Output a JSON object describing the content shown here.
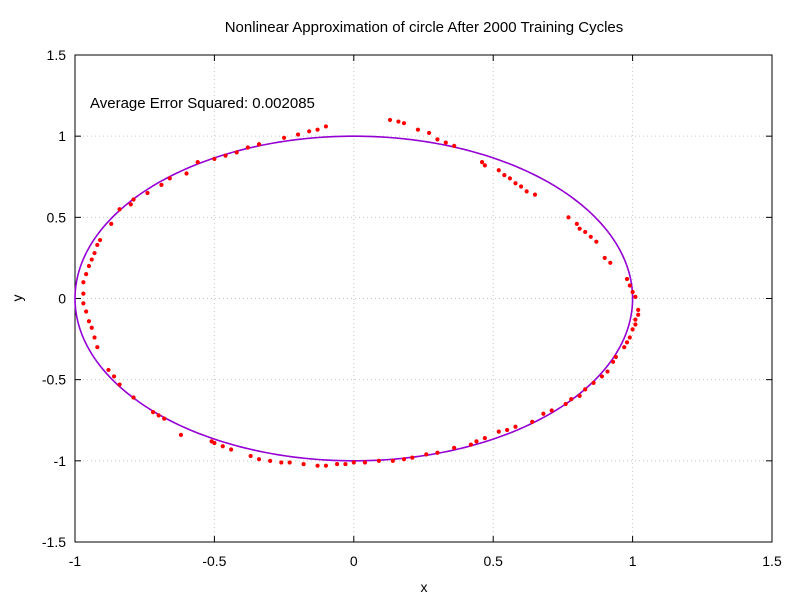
{
  "chart_data": {
    "type": "scatter",
    "title": "Nonlinear Approximation of circle After 2000 Training Cycles",
    "annotation": "Average Error Squared: 0.002085",
    "xlabel": "x",
    "ylabel": "y",
    "xlim": [
      -1,
      1.5
    ],
    "ylim": [
      -1.5,
      1.5
    ],
    "x_ticks": [
      -1,
      -0.5,
      0,
      0.5,
      1,
      1.5
    ],
    "y_ticks": [
      -1.5,
      -1,
      -0.5,
      0,
      0.5,
      1,
      1.5
    ],
    "x_tick_labels": [
      "-1",
      "-0.5",
      "0",
      "0.5",
      "1",
      "1.5"
    ],
    "y_tick_labels": [
      "-1.5",
      "-1",
      "-0.5",
      "0",
      "0.5",
      "1",
      "1.5"
    ],
    "grid": true,
    "legend": "none",
    "colors": {
      "circle": "#9400d3",
      "points": "#ff0000",
      "grid": "#c8c8c8"
    },
    "series": [
      {
        "type": "line",
        "shape": "unit circle",
        "center": [
          0,
          0
        ],
        "radius": 1
      },
      {
        "type": "scatter",
        "points": [
          [
            0.13,
            1.1
          ],
          [
            0.16,
            1.09
          ],
          [
            0.18,
            1.08
          ],
          [
            0.23,
            1.04
          ],
          [
            0.27,
            1.02
          ],
          [
            0.3,
            0.98
          ],
          [
            0.33,
            0.96
          ],
          [
            0.36,
            0.94
          ],
          [
            0.46,
            0.84
          ],
          [
            0.47,
            0.82
          ],
          [
            0.52,
            0.79
          ],
          [
            0.54,
            0.76
          ],
          [
            0.56,
            0.74
          ],
          [
            0.58,
            0.71
          ],
          [
            0.6,
            0.69
          ],
          [
            0.62,
            0.66
          ],
          [
            0.65,
            0.64
          ],
          [
            0.77,
            0.5
          ],
          [
            0.8,
            0.46
          ],
          [
            0.81,
            0.43
          ],
          [
            0.83,
            0.41
          ],
          [
            0.85,
            0.38
          ],
          [
            0.87,
            0.35
          ],
          [
            0.9,
            0.25
          ],
          [
            0.92,
            0.22
          ],
          [
            0.98,
            0.12
          ],
          [
            0.99,
            0.08
          ],
          [
            1.0,
            0.04
          ],
          [
            1.01,
            0.01
          ],
          [
            1.02,
            -0.07
          ],
          [
            1.02,
            -0.1
          ],
          [
            1.01,
            -0.13
          ],
          [
            1.01,
            -0.16
          ],
          [
            1.0,
            -0.19
          ],
          [
            0.99,
            -0.24
          ],
          [
            0.98,
            -0.27
          ],
          [
            0.97,
            -0.3
          ],
          [
            0.94,
            -0.36
          ],
          [
            0.93,
            -0.39
          ],
          [
            0.91,
            -0.45
          ],
          [
            0.89,
            -0.48
          ],
          [
            0.86,
            -0.52
          ],
          [
            0.83,
            -0.56
          ],
          [
            0.81,
            -0.6
          ],
          [
            0.78,
            -0.62
          ],
          [
            0.76,
            -0.65
          ],
          [
            0.71,
            -0.69
          ],
          [
            0.68,
            -0.71
          ],
          [
            0.64,
            -0.76
          ],
          [
            0.58,
            -0.79
          ],
          [
            0.55,
            -0.81
          ],
          [
            0.52,
            -0.82
          ],
          [
            0.47,
            -0.86
          ],
          [
            0.44,
            -0.88
          ],
          [
            0.42,
            -0.9
          ],
          [
            0.36,
            -0.92
          ],
          [
            0.3,
            -0.95
          ],
          [
            0.26,
            -0.96
          ],
          [
            0.21,
            -0.98
          ],
          [
            0.18,
            -0.99
          ],
          [
            0.14,
            -1.0
          ],
          [
            0.09,
            -1.0
          ],
          [
            0.04,
            -1.01
          ],
          [
            0.0,
            -1.01
          ],
          [
            -0.03,
            -1.02
          ],
          [
            -0.06,
            -1.02
          ],
          [
            -0.1,
            -1.03
          ],
          [
            -0.13,
            -1.03
          ],
          [
            -0.18,
            -1.02
          ],
          [
            -0.23,
            -1.01
          ],
          [
            -0.26,
            -1.01
          ],
          [
            -0.3,
            -1.0
          ],
          [
            -0.34,
            -0.99
          ],
          [
            -0.37,
            -0.97
          ],
          [
            -0.44,
            -0.93
          ],
          [
            -0.47,
            -0.91
          ],
          [
            -0.5,
            -0.89
          ],
          [
            -0.51,
            -0.88
          ],
          [
            -0.62,
            -0.84
          ],
          [
            -0.68,
            -0.74
          ],
          [
            -0.7,
            -0.72
          ],
          [
            -0.72,
            -0.7
          ],
          [
            -0.79,
            -0.61
          ],
          [
            -0.84,
            -0.53
          ],
          [
            -0.86,
            -0.48
          ],
          [
            -0.88,
            -0.44
          ],
          [
            -0.92,
            -0.3
          ],
          [
            -0.93,
            -0.24
          ],
          [
            -0.94,
            -0.18
          ],
          [
            -0.95,
            -0.14
          ],
          [
            -0.96,
            -0.08
          ],
          [
            -0.97,
            -0.03
          ],
          [
            -0.97,
            0.03
          ],
          [
            -0.97,
            0.1
          ],
          [
            -0.96,
            0.15
          ],
          [
            -0.95,
            0.2
          ],
          [
            -0.94,
            0.24
          ],
          [
            -0.93,
            0.28
          ],
          [
            -0.92,
            0.33
          ],
          [
            -0.91,
            0.36
          ],
          [
            -0.87,
            0.46
          ],
          [
            -0.84,
            0.55
          ],
          [
            -0.8,
            0.58
          ],
          [
            -0.79,
            0.61
          ],
          [
            -0.74,
            0.65
          ],
          [
            -0.69,
            0.7
          ],
          [
            -0.66,
            0.74
          ],
          [
            -0.6,
            0.77
          ],
          [
            -0.56,
            0.84
          ],
          [
            -0.5,
            0.86
          ],
          [
            -0.46,
            0.88
          ],
          [
            -0.42,
            0.9
          ],
          [
            -0.38,
            0.93
          ],
          [
            -0.34,
            0.95
          ],
          [
            -0.25,
            0.99
          ],
          [
            -0.2,
            1.01
          ],
          [
            -0.16,
            1.03
          ],
          [
            -0.13,
            1.04
          ],
          [
            -0.1,
            1.06
          ]
        ]
      }
    ]
  }
}
